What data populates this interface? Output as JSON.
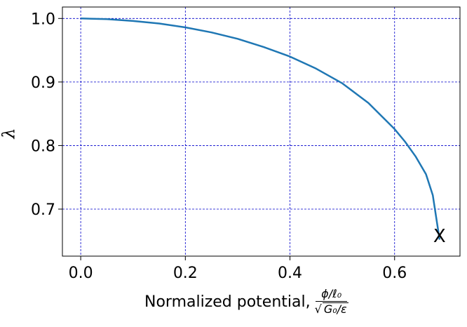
{
  "chart_data": {
    "type": "line",
    "title": "",
    "xlabel_text": "Normalized potential,",
    "xlabel_frac_num": "ϕ/ℓ₀",
    "xlabel_frac_den_sqrt": "G₀/ε",
    "ylabel": "λ",
    "xlim": [
      -0.035,
      0.725
    ],
    "ylim": [
      0.626,
      1.018
    ],
    "xticks": [
      0.0,
      0.2,
      0.4,
      0.6
    ],
    "xtick_labels": [
      "0.0",
      "0.2",
      "0.4",
      "0.6"
    ],
    "yticks": [
      0.7,
      0.8,
      0.9,
      1.0
    ],
    "ytick_labels": [
      "0.7",
      "0.8",
      "0.9",
      "1.0"
    ],
    "grid": true,
    "grid_color": "#0000cc",
    "line_color": "#1f77b4",
    "series": [
      {
        "x": [
          0.0,
          0.05,
          0.1,
          0.15,
          0.2,
          0.25,
          0.3,
          0.35,
          0.4,
          0.45,
          0.5,
          0.55,
          0.6,
          0.62,
          0.64,
          0.66,
          0.673,
          0.686
        ],
        "y": [
          1.0,
          0.999,
          0.996,
          0.992,
          0.986,
          0.978,
          0.968,
          0.955,
          0.94,
          0.921,
          0.898,
          0.867,
          0.826,
          0.806,
          0.783,
          0.755,
          0.722,
          0.652
        ]
      }
    ],
    "end_marker": {
      "label": "X",
      "x": 0.686,
      "y": 0.652
    }
  }
}
